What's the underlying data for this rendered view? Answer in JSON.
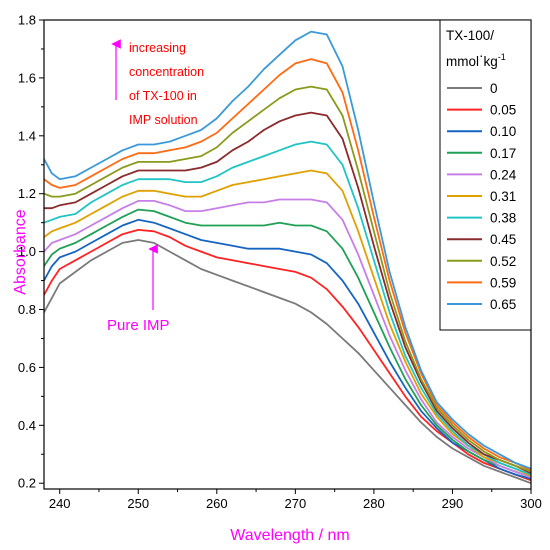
{
  "chart_data": {
    "type": "line",
    "xlabel": "Wavelength / nm",
    "ylabel": "Absorbance",
    "xlim": [
      238,
      300
    ],
    "ylim": [
      0.18,
      1.8
    ],
    "xticks": [
      "240",
      "250",
      "260",
      "270",
      "280",
      "290",
      "300"
    ],
    "yticks": [
      "0.2",
      "0.4",
      "0.6",
      "0.8",
      "1.0",
      "1.2",
      "1.4",
      "1.6",
      "1.8"
    ],
    "legend": {
      "title_line1": "TX-100/",
      "title_line2_main": "mmol",
      "title_line2_dot": "·",
      "title_line2_unit": "kg",
      "title_line2_sup": "-1",
      "placement": "top-right (outside)"
    },
    "annotations": {
      "increasing": [
        "increasing",
        "concentration",
        "of TX-100 in",
        "IMP solution"
      ],
      "pure": "Pure IMP"
    },
    "colors": {
      "axis_title": "#ff00ff",
      "annotation_text": "#ff0000",
      "arrow": "#ff00ff"
    },
    "x": [
      238,
      239,
      240,
      242,
      244,
      246,
      248,
      250,
      252,
      254,
      256,
      258,
      260,
      262,
      264,
      266,
      268,
      270,
      272,
      274,
      276,
      278,
      280,
      282,
      284,
      286,
      288,
      290,
      292,
      294,
      296,
      298,
      300
    ],
    "series": [
      {
        "name": "0",
        "color": "#7a7a7a",
        "values": [
          0.79,
          0.84,
          0.89,
          0.93,
          0.97,
          1.0,
          1.03,
          1.04,
          1.03,
          1.0,
          0.97,
          0.94,
          0.92,
          0.9,
          0.88,
          0.86,
          0.84,
          0.82,
          0.79,
          0.75,
          0.7,
          0.65,
          0.59,
          0.53,
          0.47,
          0.41,
          0.36,
          0.32,
          0.29,
          0.26,
          0.24,
          0.22,
          0.2
        ]
      },
      {
        "name": "0.05",
        "color": "#ff2222",
        "values": [
          0.85,
          0.9,
          0.94,
          0.97,
          1.0,
          1.03,
          1.06,
          1.075,
          1.07,
          1.05,
          1.02,
          1.0,
          0.98,
          0.97,
          0.96,
          0.95,
          0.94,
          0.93,
          0.91,
          0.87,
          0.81,
          0.74,
          0.66,
          0.58,
          0.5,
          0.43,
          0.38,
          0.34,
          0.3,
          0.27,
          0.25,
          0.23,
          0.21
        ]
      },
      {
        "name": "0.10",
        "color": "#1565c0",
        "values": [
          0.9,
          0.95,
          0.98,
          1.0,
          1.03,
          1.06,
          1.09,
          1.11,
          1.1,
          1.08,
          1.06,
          1.04,
          1.03,
          1.02,
          1.01,
          1.01,
          1.01,
          1.0,
          0.99,
          0.96,
          0.9,
          0.82,
          0.72,
          0.62,
          0.53,
          0.45,
          0.39,
          0.34,
          0.31,
          0.28,
          0.25,
          0.23,
          0.215
        ]
      },
      {
        "name": "0.17",
        "color": "#1fa055",
        "values": [
          0.95,
          0.99,
          1.01,
          1.03,
          1.06,
          1.09,
          1.12,
          1.145,
          1.14,
          1.12,
          1.1,
          1.09,
          1.09,
          1.09,
          1.09,
          1.09,
          1.1,
          1.09,
          1.09,
          1.07,
          1.01,
          0.91,
          0.79,
          0.67,
          0.56,
          0.47,
          0.4,
          0.35,
          0.31,
          0.28,
          0.26,
          0.24,
          0.22
        ]
      },
      {
        "name": "0.24",
        "color": "#c77fe8",
        "values": [
          1.0,
          1.03,
          1.04,
          1.06,
          1.09,
          1.12,
          1.15,
          1.175,
          1.175,
          1.16,
          1.14,
          1.14,
          1.15,
          1.16,
          1.17,
          1.17,
          1.18,
          1.18,
          1.18,
          1.17,
          1.11,
          0.99,
          0.85,
          0.71,
          0.59,
          0.49,
          0.41,
          0.36,
          0.32,
          0.29,
          0.26,
          0.24,
          0.22
        ]
      },
      {
        "name": "0.31",
        "color": "#e0a000",
        "values": [
          1.05,
          1.07,
          1.08,
          1.1,
          1.13,
          1.16,
          1.19,
          1.21,
          1.21,
          1.2,
          1.19,
          1.19,
          1.21,
          1.23,
          1.24,
          1.25,
          1.26,
          1.27,
          1.28,
          1.27,
          1.21,
          1.07,
          0.91,
          0.75,
          0.62,
          0.51,
          0.43,
          0.37,
          0.33,
          0.29,
          0.27,
          0.25,
          0.225
        ]
      },
      {
        "name": "0.38",
        "color": "#20c4c4",
        "values": [
          1.1,
          1.11,
          1.12,
          1.13,
          1.17,
          1.2,
          1.23,
          1.25,
          1.25,
          1.25,
          1.24,
          1.24,
          1.26,
          1.29,
          1.31,
          1.33,
          1.35,
          1.37,
          1.38,
          1.37,
          1.3,
          1.15,
          0.97,
          0.79,
          0.64,
          0.53,
          0.44,
          0.38,
          0.33,
          0.3,
          0.27,
          0.25,
          0.23
        ]
      },
      {
        "name": "0.45",
        "color": "#8b2a2a",
        "values": [
          1.15,
          1.15,
          1.16,
          1.17,
          1.2,
          1.23,
          1.26,
          1.28,
          1.28,
          1.28,
          1.28,
          1.29,
          1.31,
          1.35,
          1.38,
          1.42,
          1.45,
          1.47,
          1.48,
          1.47,
          1.39,
          1.22,
          1.02,
          0.83,
          0.67,
          0.55,
          0.45,
          0.39,
          0.34,
          0.3,
          0.28,
          0.26,
          0.235
        ]
      },
      {
        "name": "0.52",
        "color": "#8a9a1a",
        "values": [
          1.2,
          1.19,
          1.19,
          1.2,
          1.23,
          1.26,
          1.29,
          1.31,
          1.31,
          1.31,
          1.32,
          1.33,
          1.36,
          1.41,
          1.45,
          1.49,
          1.53,
          1.56,
          1.57,
          1.56,
          1.47,
          1.28,
          1.07,
          0.86,
          0.69,
          0.56,
          0.46,
          0.4,
          0.35,
          0.31,
          0.28,
          0.26,
          0.24
        ]
      },
      {
        "name": "0.59",
        "color": "#ff6a13",
        "values": [
          1.25,
          1.23,
          1.22,
          1.23,
          1.26,
          1.29,
          1.32,
          1.34,
          1.34,
          1.35,
          1.36,
          1.38,
          1.41,
          1.46,
          1.51,
          1.56,
          1.61,
          1.65,
          1.665,
          1.65,
          1.55,
          1.35,
          1.12,
          0.9,
          0.72,
          0.58,
          0.47,
          0.41,
          0.36,
          0.32,
          0.29,
          0.27,
          0.245
        ]
      },
      {
        "name": "0.65",
        "color": "#3a9ad9",
        "values": [
          1.32,
          1.27,
          1.25,
          1.26,
          1.29,
          1.32,
          1.35,
          1.37,
          1.37,
          1.38,
          1.4,
          1.42,
          1.46,
          1.52,
          1.57,
          1.63,
          1.68,
          1.73,
          1.76,
          1.75,
          1.64,
          1.42,
          1.17,
          0.93,
          0.74,
          0.59,
          0.48,
          0.42,
          0.37,
          0.33,
          0.3,
          0.27,
          0.25
        ]
      }
    ]
  }
}
